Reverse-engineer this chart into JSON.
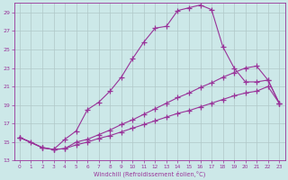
{
  "xlabel": "Windchill (Refroidissement éolien,°C)",
  "bg_color": "#cce8e8",
  "grid_color": "#b0c8c8",
  "line_color": "#993399",
  "xlim": [
    -0.5,
    23.5
  ],
  "ylim": [
    13,
    30
  ],
  "xticks": [
    0,
    1,
    2,
    3,
    4,
    5,
    6,
    7,
    8,
    9,
    10,
    11,
    12,
    13,
    14,
    15,
    16,
    17,
    18,
    19,
    20,
    21,
    22,
    23
  ],
  "yticks": [
    13,
    15,
    17,
    19,
    21,
    23,
    25,
    27,
    29
  ],
  "line1_x": [
    0,
    1,
    2,
    3,
    4,
    5,
    6,
    7,
    8,
    9,
    10,
    11,
    12,
    13,
    14,
    15,
    16,
    17,
    18,
    19,
    20,
    21,
    22,
    23
  ],
  "line1_y": [
    15.5,
    15.0,
    14.4,
    14.2,
    15.3,
    16.2,
    18.5,
    19.3,
    20.5,
    22.0,
    24.0,
    25.8,
    27.3,
    27.5,
    29.2,
    29.5,
    29.8,
    29.3,
    25.3,
    23.0,
    21.5,
    21.5,
    21.7,
    19.2
  ],
  "line2_x": [
    0,
    2,
    3,
    4,
    5,
    6,
    7,
    8,
    9,
    10,
    11,
    12,
    13,
    14,
    15,
    16,
    17,
    18,
    19,
    20,
    21,
    22,
    23
  ],
  "line2_y": [
    15.5,
    14.4,
    14.2,
    14.3,
    15.0,
    15.3,
    15.8,
    16.3,
    16.9,
    17.4,
    18.0,
    18.6,
    19.2,
    19.8,
    20.3,
    20.9,
    21.4,
    22.0,
    22.5,
    23.0,
    23.2,
    21.7,
    19.2
  ],
  "line3_x": [
    0,
    2,
    3,
    4,
    5,
    6,
    7,
    8,
    9,
    10,
    11,
    12,
    13,
    14,
    15,
    16,
    17,
    18,
    19,
    20,
    21,
    22,
    23
  ],
  "line3_y": [
    15.5,
    14.4,
    14.2,
    14.3,
    14.7,
    15.0,
    15.4,
    15.7,
    16.1,
    16.5,
    16.9,
    17.3,
    17.7,
    18.1,
    18.4,
    18.8,
    19.2,
    19.6,
    20.0,
    20.3,
    20.5,
    21.0,
    19.2
  ],
  "marker_size": 4,
  "linewidth": 0.8
}
